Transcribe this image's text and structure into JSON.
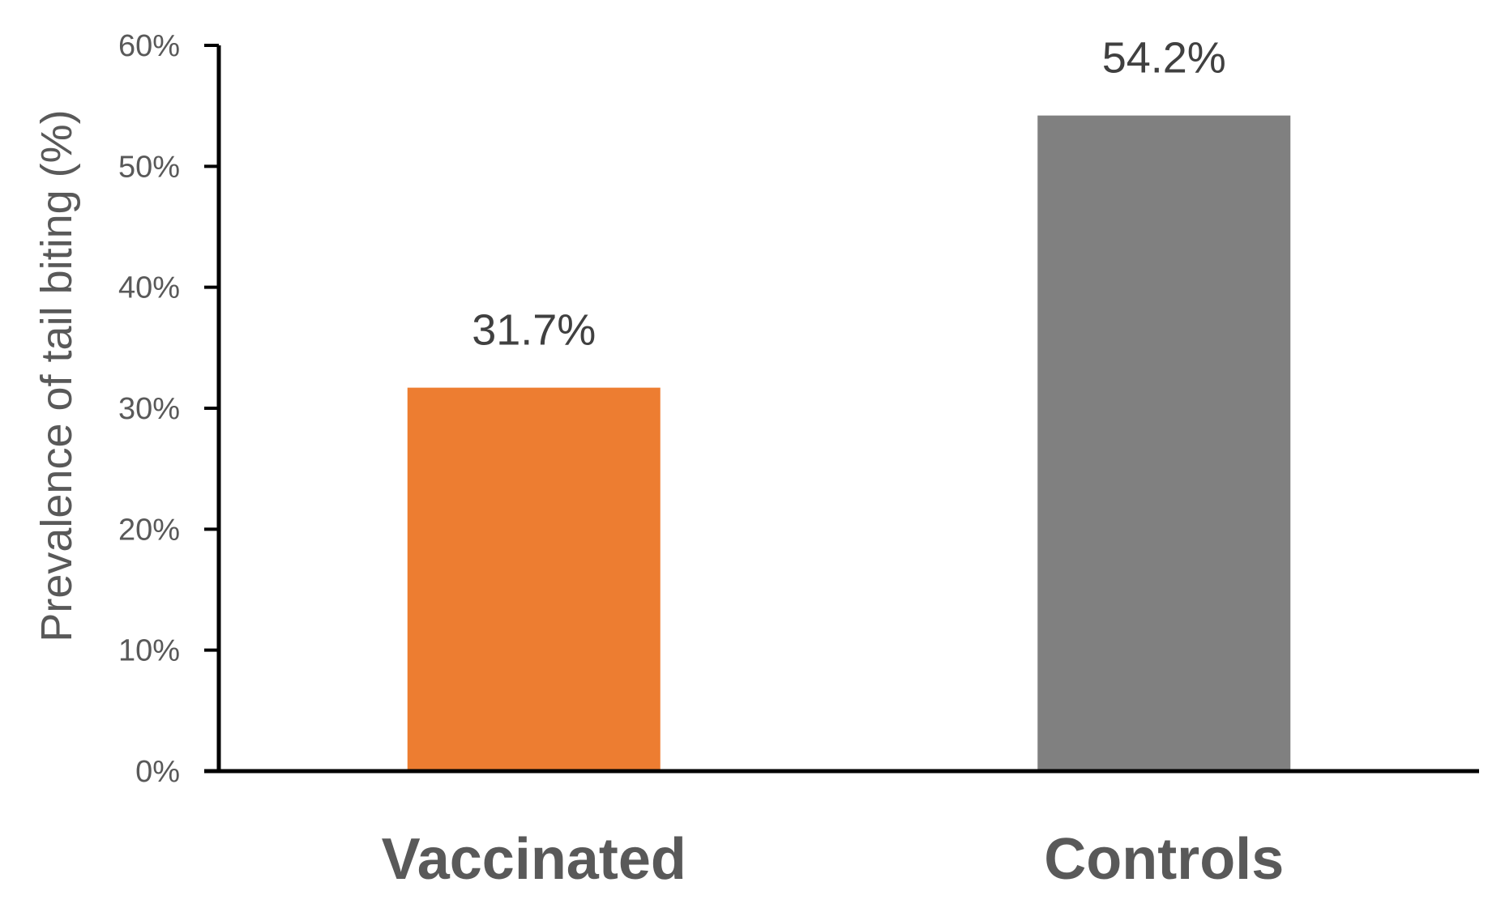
{
  "chart_data": {
    "type": "bar",
    "title": "",
    "xlabel": "",
    "ylabel": "Prevalence of tail biting (%)",
    "categories": [
      "Vaccinated",
      "Controls"
    ],
    "values": [
      31.7,
      54.2
    ],
    "value_labels": [
      "31.7%",
      "54.2%"
    ],
    "bar_colors": [
      "#ED7D31",
      "#808080"
    ],
    "ylim": [
      0,
      60
    ],
    "yticks": [
      0,
      10,
      20,
      30,
      40,
      50,
      60
    ],
    "ytick_labels": [
      "0%",
      "10%",
      "20%",
      "30%",
      "40%",
      "50%",
      "60%"
    ],
    "grid": false,
    "legend": "none"
  }
}
